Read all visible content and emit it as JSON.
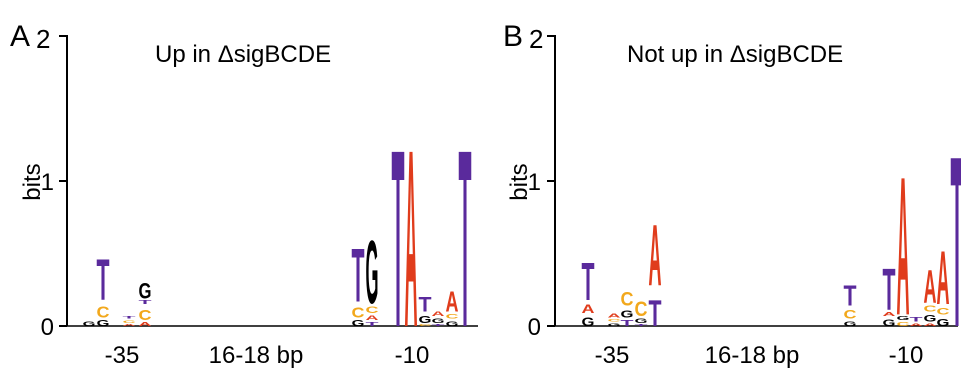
{
  "panels": [
    {
      "letter": "A",
      "title": "Up in ΔsigBCDE",
      "ylabel": "bits",
      "yticks": [
        "0",
        "1",
        "2"
      ],
      "regions": [
        "-35",
        "16-18 bp",
        "-10"
      ],
      "logo": [
        {
          "pos": 1,
          "letters": [
            [
              "G",
              0.05
            ]
          ]
        },
        {
          "pos": 2,
          "letters": [
            [
              "G",
              0.06
            ],
            [
              "C",
              0.12
            ],
            [
              "T",
              0.44
            ]
          ]
        },
        {
          "pos": 3,
          "letters": [
            [
              "A",
              0.02
            ],
            [
              "C",
              0.03
            ],
            [
              "T",
              0.03
            ]
          ]
        },
        {
          "pos": 4,
          "letters": [
            [
              "A",
              0.04
            ],
            [
              "C",
              0.11
            ],
            [
              "T",
              0.04
            ],
            [
              "G",
              0.17
            ]
          ]
        },
        {
          "pos": 5,
          "letters": [
            [
              "G",
              0.06
            ],
            [
              "C",
              0.11
            ],
            [
              "T",
              0.58
            ]
          ]
        },
        {
          "pos": 6,
          "letters": [
            [
              "T",
              0.04
            ],
            [
              "A",
              0.05
            ],
            [
              "C",
              0.07
            ],
            [
              "G",
              0.68
            ]
          ]
        },
        {
          "pos": 7,
          "letters": [
            [
              "T",
              1.92
            ]
          ]
        },
        {
          "pos": 8,
          "letters": [
            [
              "A",
              1.92
            ]
          ]
        },
        {
          "pos": 9,
          "letters": [
            [
              "C",
              0.02
            ],
            [
              "G",
              0.08
            ],
            [
              "T",
              0.16
            ]
          ]
        },
        {
          "pos": 10,
          "letters": [
            [
              "T",
              0.02
            ],
            [
              "G",
              0.05
            ],
            [
              "A",
              0.05
            ]
          ]
        },
        {
          "pos": 11,
          "letters": [
            [
              "G",
              0.05
            ],
            [
              "C",
              0.05
            ],
            [
              "A",
              0.22
            ]
          ]
        },
        {
          "pos": 12,
          "letters": [
            [
              "T",
              1.92
            ]
          ]
        }
      ]
    },
    {
      "letter": "B",
      "title": "Not up in ΔsigBCDE",
      "ylabel": "bits",
      "yticks": [
        "0",
        "1",
        "2"
      ],
      "regions": [
        "-35",
        "16-18 bp",
        "-10"
      ],
      "logo": [
        {
          "pos": 1,
          "letters": [
            [
              "G",
              0.09
            ],
            [
              "A",
              0.09
            ],
            [
              "T",
              0.41
            ]
          ]
        },
        {
          "pos": 2,
          "letters": [
            [
              "G",
              0.03
            ],
            [
              "C",
              0.03
            ],
            [
              "A",
              0.04
            ]
          ]
        },
        {
          "pos": 3,
          "letters": [
            [
              "T",
              0.06
            ],
            [
              "G",
              0.08
            ],
            [
              "C",
              0.15
            ]
          ]
        },
        {
          "pos": 4,
          "letters": [
            [
              "T",
              0.02
            ],
            [
              "G",
              0.05
            ],
            [
              "C",
              0.16
            ]
          ]
        },
        {
          "pos": 5,
          "letters": [
            [
              "T",
              0.28
            ],
            [
              "A",
              0.66
            ]
          ]
        },
        {
          "pos": 6,
          "letters": [
            [
              "G",
              0.05
            ],
            [
              "C",
              0.09
            ],
            [
              "T",
              0.22
            ]
          ]
        },
        {
          "pos": 7,
          "letters": [
            [
              "G",
              0.07
            ],
            [
              "A",
              0.04
            ],
            [
              "T",
              0.45
            ]
          ]
        },
        {
          "pos": 8,
          "letters": [
            [
              "C",
              0.04
            ],
            [
              "G",
              0.04
            ],
            [
              "A",
              1.5
            ]
          ]
        },
        {
          "pos": 9,
          "letters": [
            [
              "A",
              0.03
            ],
            [
              "T",
              0.05
            ]
          ]
        },
        {
          "pos": 10,
          "letters": [
            [
              "A",
              0.03
            ],
            [
              "G",
              0.07
            ],
            [
              "C",
              0.06
            ],
            [
              "A",
              0.36
            ]
          ]
        },
        {
          "pos": 11,
          "letters": [
            [
              "G",
              0.08
            ],
            [
              "C",
              0.07
            ],
            [
              "A",
              0.58
            ]
          ]
        },
        {
          "pos": 12,
          "letters": [
            [
              "T",
              1.85
            ]
          ]
        }
      ]
    }
  ],
  "colors": {
    "A": "#e03c1c",
    "C": "#f2a81c",
    "G": "#000000",
    "T": "#5a2a9c"
  }
}
